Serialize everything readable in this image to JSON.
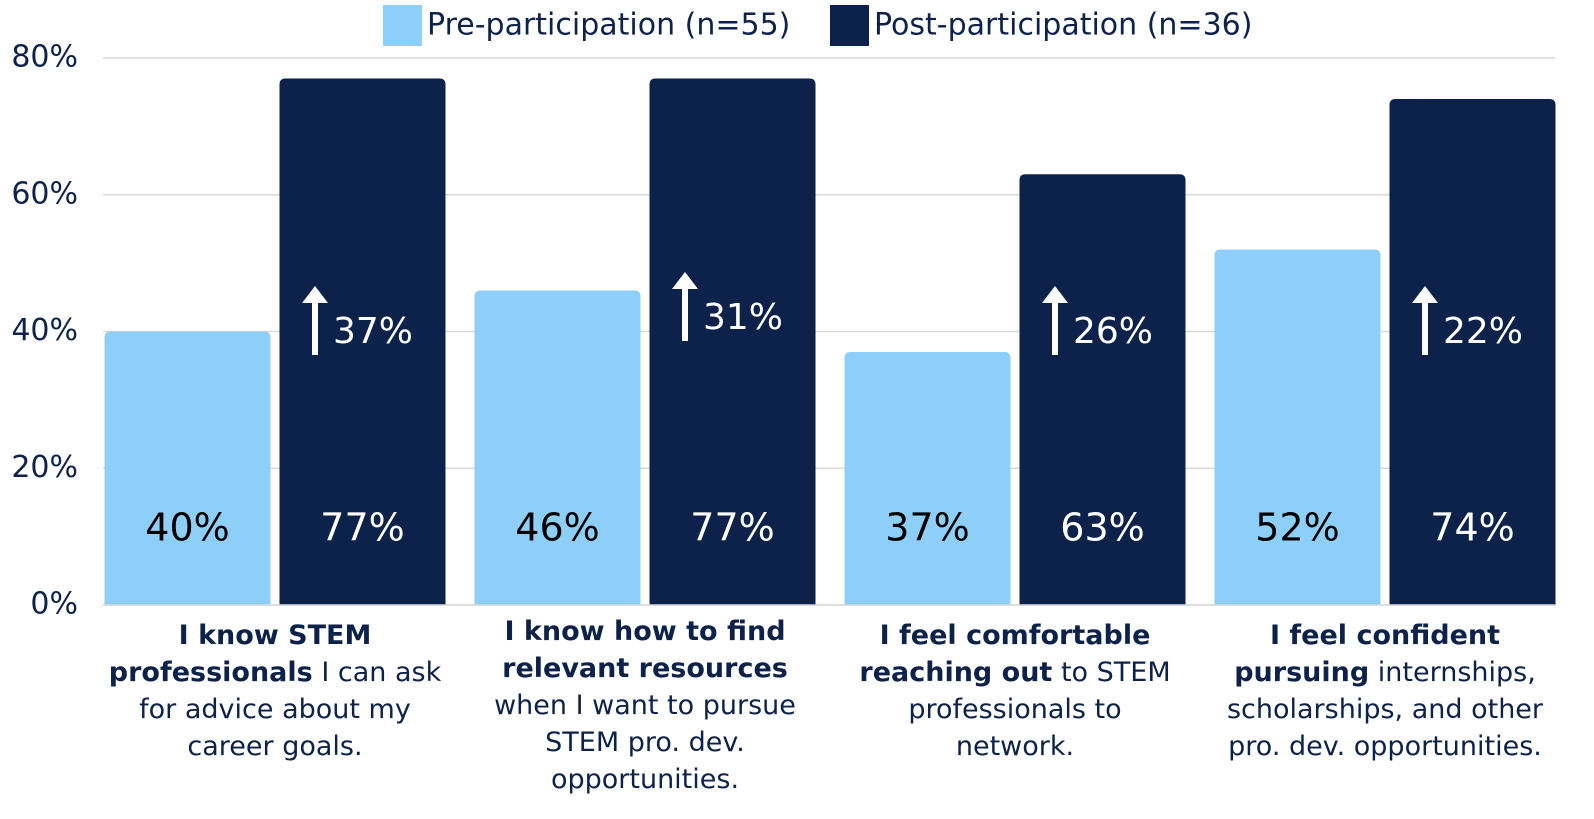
{
  "chart_data": {
    "type": "bar",
    "categories": [
      [
        "I know STEM professionals",
        "I can ask for advice about my career goals."
      ],
      [
        "I know how to find relevant resources",
        "when I want to pursue STEM pro. dev. opportunities."
      ],
      [
        "I feel comfortable reaching out",
        "to STEM professionals to network."
      ],
      [
        "I feel confident pursuing",
        "internships, scholarships, and other pro. dev. opportunities."
      ]
    ],
    "series": [
      {
        "name": "Pre-participation (n=55)",
        "color": "#8dcff8",
        "values": [
          40,
          46,
          37,
          52
        ],
        "value_labels": [
          "40%",
          "46%",
          "37%",
          "52%"
        ]
      },
      {
        "name": "Post-participation (n=36)",
        "color": "#0d224a",
        "values": [
          77,
          77,
          63,
          74
        ],
        "value_labels": [
          "77%",
          "77%",
          "63%",
          "74%"
        ]
      }
    ],
    "annotations": [
      "37%",
      "31%",
      "26%",
      "22%"
    ],
    "ylim": [
      0,
      80
    ],
    "yticks": [
      {
        "value": 0,
        "label": "0%"
      },
      {
        "value": 20,
        "label": "20%"
      },
      {
        "value": 40,
        "label": "40%"
      },
      {
        "value": 60,
        "label": "60%"
      },
      {
        "value": 80,
        "label": "80%"
      }
    ],
    "grid": true,
    "legend": "top"
  }
}
